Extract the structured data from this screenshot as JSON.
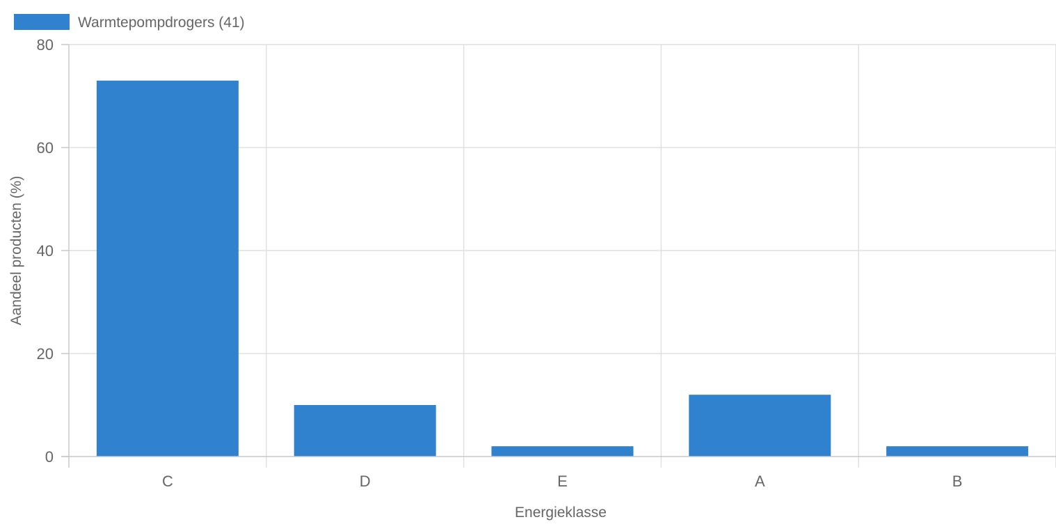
{
  "chart_data": {
    "type": "bar",
    "categories": [
      "C",
      "D",
      "E",
      "A",
      "B"
    ],
    "series": [
      {
        "name": "Warmtepompdrogers (41)",
        "values": [
          73,
          10,
          2,
          12,
          2
        ],
        "color": "#3182ce"
      }
    ],
    "xlabel": "Energieklasse",
    "ylabel": "Aandeel producten (%)",
    "ylim": [
      0,
      80
    ],
    "yticks": [
      0,
      20,
      40,
      60,
      80
    ],
    "grid": true,
    "legend_position": "top-left"
  },
  "colors": {
    "bar": "#3182ce",
    "grid": "#e1e1e1",
    "axis": "#c8c8c8",
    "text": "#666666"
  }
}
